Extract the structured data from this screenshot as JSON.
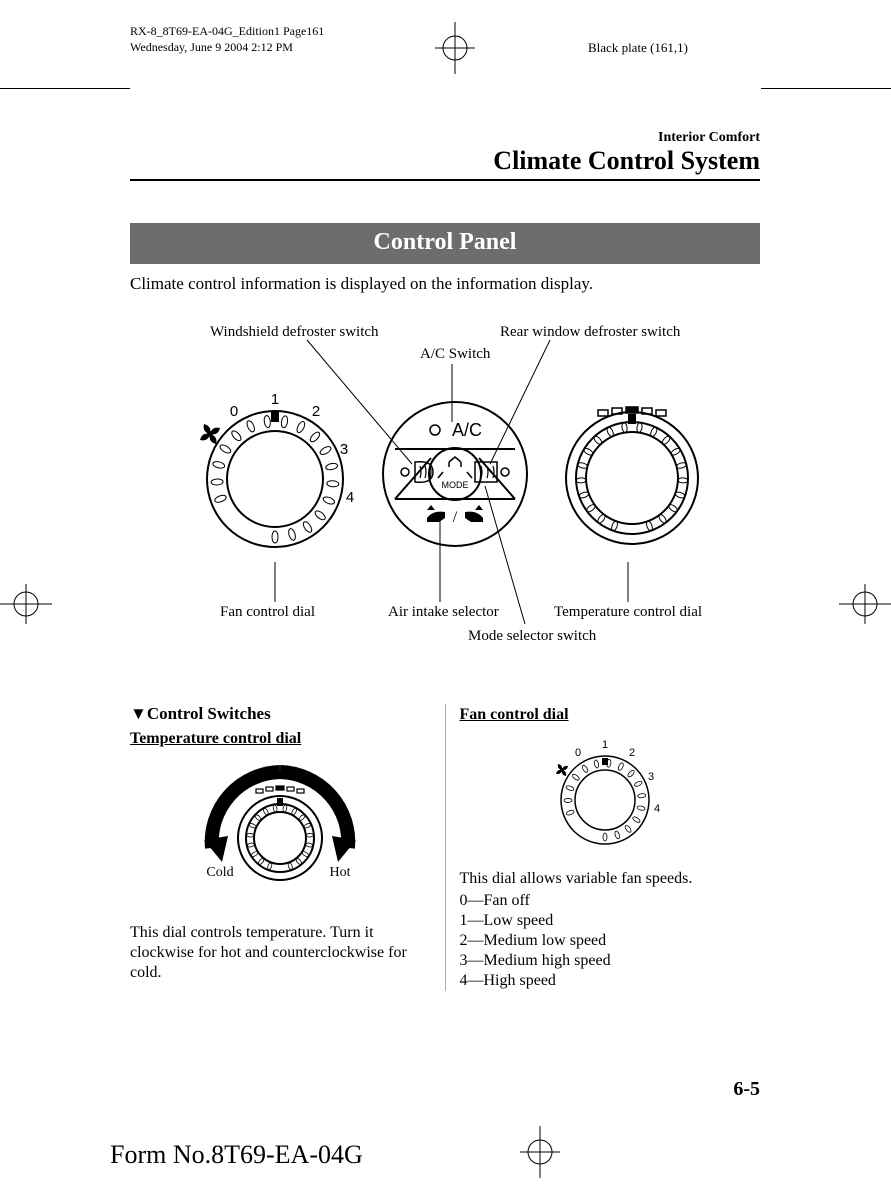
{
  "meta": {
    "doc_id": "RX-8_8T69-EA-04G_Edition1 Page161",
    "print_date": "Wednesday, June 9 2004 2:12 PM",
    "black_plate": "Black plate (161,1)"
  },
  "header": {
    "subsection": "Interior Comfort",
    "title": "Climate Control System"
  },
  "banner": "Control Panel",
  "intro": "Climate control information is displayed on the information display.",
  "diagram": {
    "labels": {
      "windshield_defroster": "Windshield defroster switch",
      "ac_switch": "A/C Switch",
      "rear_defroster": "Rear window defroster switch",
      "fan_dial": "Fan control dial",
      "air_intake": "Air intake selector",
      "temp_dial": "Temperature control dial",
      "mode_selector": "Mode selector switch"
    },
    "fan_numbers": [
      "0",
      "1",
      "2",
      "3",
      "4"
    ],
    "center": {
      "ac": "A/C",
      "mode": "MODE"
    }
  },
  "left_col": {
    "section": "Control Switches",
    "heading": "Temperature control dial",
    "cold": "Cold",
    "hot": "Hot",
    "body": "This dial controls temperature. Turn it clockwise for hot and counterclockwise for cold."
  },
  "right_col": {
    "heading": "Fan control dial",
    "intro": "This dial allows variable fan speeds.",
    "speeds": [
      "0―Fan off",
      "1―Low speed",
      "2―Medium low speed",
      "3―Medium high speed",
      "4―High speed"
    ]
  },
  "page_number": "6-5",
  "form_no": "Form No.8T69-EA-04G",
  "style": {
    "banner_bg": "#6d6d6d",
    "banner_fg": "#ffffff",
    "text": "#000000",
    "page_bg": "#ffffff"
  }
}
